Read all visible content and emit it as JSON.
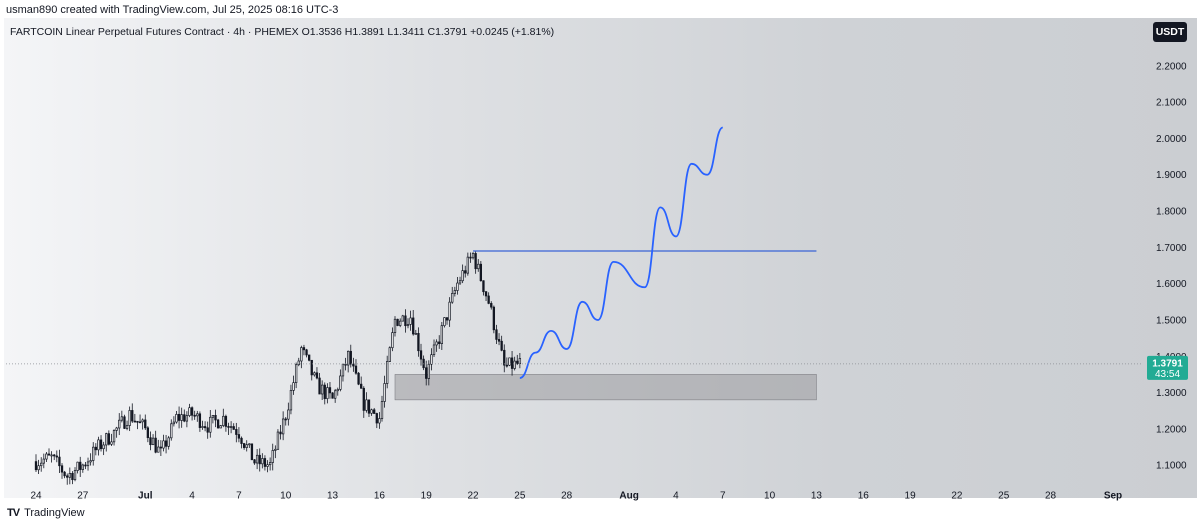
{
  "header": {
    "creator": "usman890 created with TradingView.com, Jul 25, 2025 08:16 UTC-3",
    "symbol_line": "FARTCOIN Linear Perpetual Futures Contract · 4h · PHEMEX  O1.3536  H1.3891  L1.3411  C1.3791  +0.0245 (+1.81%)",
    "currency": "USDT"
  },
  "footer": {
    "brand": "TradingView",
    "logo_mark": "TV"
  },
  "colors": {
    "up": "#131722",
    "down": "#131722",
    "projection": "#2962ff",
    "resistance": "#3a63d6",
    "zone": "#9a9a9f",
    "price_badge": "#22ab94"
  },
  "chart_data": {
    "type": "candlestick",
    "timeframe": "4h",
    "y_axis": {
      "ticks": [
        "1.1000",
        "1.2000",
        "1.3000",
        "1.4000",
        "1.5000",
        "1.6000",
        "1.7000",
        "1.8000",
        "1.9000",
        "2.0000",
        "2.1000",
        "2.2000"
      ],
      "range": [
        1.04,
        2.26
      ]
    },
    "x_axis": {
      "ticks": [
        {
          "label": "24",
          "date": "2025-06-24"
        },
        {
          "label": "27",
          "date": "2025-06-27"
        },
        {
          "label": "Jul",
          "date": "2025-07-01",
          "bold": true
        },
        {
          "label": "4",
          "date": "2025-07-04"
        },
        {
          "label": "7",
          "date": "2025-07-07"
        },
        {
          "label": "10",
          "date": "2025-07-10"
        },
        {
          "label": "13",
          "date": "2025-07-13"
        },
        {
          "label": "16",
          "date": "2025-07-16"
        },
        {
          "label": "19",
          "date": "2025-07-19"
        },
        {
          "label": "22",
          "date": "2025-07-22"
        },
        {
          "label": "25",
          "date": "2025-07-25"
        },
        {
          "label": "28",
          "date": "2025-07-28"
        },
        {
          "label": "Aug",
          "date": "2025-08-01",
          "bold": true
        },
        {
          "label": "4",
          "date": "2025-08-04"
        },
        {
          "label": "7",
          "date": "2025-08-07"
        },
        {
          "label": "10",
          "date": "2025-08-10"
        },
        {
          "label": "13",
          "date": "2025-08-13"
        },
        {
          "label": "16",
          "date": "2025-08-16"
        },
        {
          "label": "19",
          "date": "2025-08-19"
        },
        {
          "label": "22",
          "date": "2025-08-22"
        },
        {
          "label": "25",
          "date": "2025-08-25"
        },
        {
          "label": "28",
          "date": "2025-08-28"
        },
        {
          "label": "Sep",
          "date": "2025-09-01",
          "bold": true
        }
      ]
    },
    "current_price": {
      "value": 1.3791,
      "label": "1.3791",
      "countdown": "43:54"
    },
    "close_path": [
      [
        "2025-06-24",
        1.11
      ],
      [
        "2025-06-25",
        1.12
      ],
      [
        "2025-06-26",
        1.07
      ],
      [
        "2025-06-27",
        1.1
      ],
      [
        "2025-06-28",
        1.15
      ],
      [
        "2025-06-29",
        1.19
      ],
      [
        "2025-06-30",
        1.24
      ],
      [
        "2025-07-01",
        1.2
      ],
      [
        "2025-07-02",
        1.13
      ],
      [
        "2025-07-03",
        1.23
      ],
      [
        "2025-07-04",
        1.24
      ],
      [
        "2025-07-05",
        1.21
      ],
      [
        "2025-07-06",
        1.23
      ],
      [
        "2025-07-07",
        1.19
      ],
      [
        "2025-07-08",
        1.11
      ],
      [
        "2025-07-09",
        1.1
      ],
      [
        "2025-07-10",
        1.24
      ],
      [
        "2025-07-11",
        1.42
      ],
      [
        "2025-07-12",
        1.32
      ],
      [
        "2025-07-13",
        1.28
      ],
      [
        "2025-07-14",
        1.4
      ],
      [
        "2025-07-15",
        1.27
      ],
      [
        "2025-07-16",
        1.23
      ],
      [
        "2025-07-17",
        1.5
      ],
      [
        "2025-07-18",
        1.51
      ],
      [
        "2025-07-19",
        1.35
      ],
      [
        "2025-07-20",
        1.47
      ],
      [
        "2025-07-21",
        1.6
      ],
      [
        "2025-07-22",
        1.68
      ],
      [
        "2025-07-23",
        1.55
      ],
      [
        "2025-07-24",
        1.37
      ],
      [
        "2025-07-25",
        1.38
      ]
    ],
    "projection_path": [
      [
        "2025-07-25",
        1.34
      ],
      [
        "2025-07-26",
        1.41
      ],
      [
        "2025-07-27",
        1.47
      ],
      [
        "2025-07-28",
        1.42
      ],
      [
        "2025-07-29",
        1.55
      ],
      [
        "2025-07-30",
        1.5
      ],
      [
        "2025-07-31",
        1.66
      ],
      [
        "2025-08-02",
        1.59
      ],
      [
        "2025-08-03",
        1.81
      ],
      [
        "2025-08-04",
        1.73
      ],
      [
        "2025-08-05",
        1.93
      ],
      [
        "2025-08-06",
        1.9
      ],
      [
        "2025-08-07",
        2.03
      ]
    ],
    "resistance_line": {
      "value": 1.69,
      "from": "2025-07-22",
      "to": "2025-08-13"
    },
    "support_zone": {
      "low": 1.28,
      "high": 1.35,
      "from": "2025-07-17",
      "to": "2025-08-13"
    }
  }
}
